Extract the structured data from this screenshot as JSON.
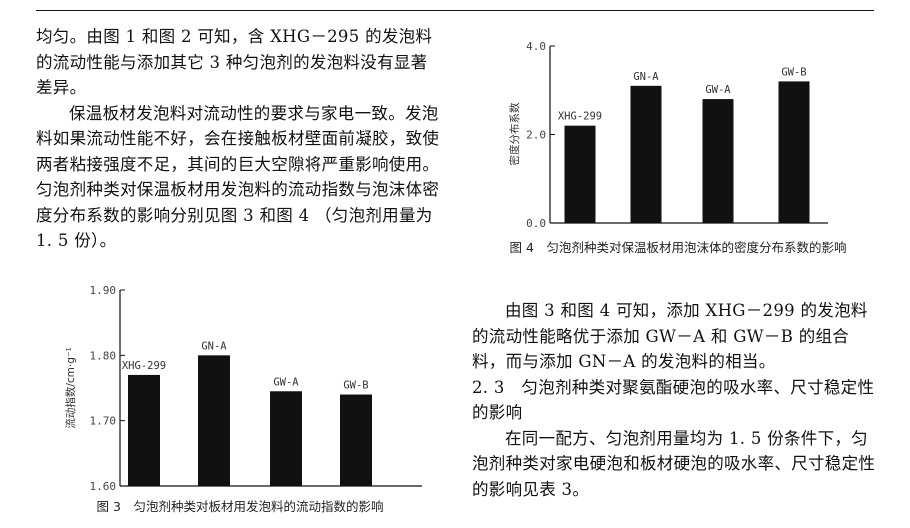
{
  "left_col": {
    "para1": "均匀。由图 1 和图 2 可知，含 XHG－295 的发泡料的流动性能与添加其它 3 种匀泡剂的发泡料没有显著差异。",
    "para2": "保温板材发泡料对流动性的要求与家电一致。发泡料如果流动性能不好，会在接触板材壁面前凝胶，致使两者粘接强度不足，其间的巨大空隙将严重影响使用。匀泡剂种类对保温板材用发泡料的流动指数与泡沫体密度分布系数的影响分别见图 3 和图 4 （匀泡剂用量为 1. 5 份）。"
  },
  "right_col": {
    "para1": "由图 3 和图 4 可知，添加 XHG－299 的发泡料的流动性能略优于添加 GW－A 和 GW－B 的组合料，而与添加 GN－A 的发泡料的相当。",
    "heading": "2. 3　匀泡剂种类对聚氨酯硬泡的吸水率、尺寸稳定性的影响",
    "para2": "在同一配方、匀泡剂用量均为 1. 5 份条件下，匀泡剂种类对家电硬泡和板材硬泡的吸水率、尺寸稳定性的影响见表 3。"
  },
  "captions": {
    "fig3": "图 3　匀泡剂种类对板材用发泡料的流动指数的影响",
    "fig4": "图 4　匀泡剂种类对保温板材用泡沫体的密度分布系数的影响"
  },
  "chart_data": [
    {
      "type": "bar",
      "id": "fig3",
      "categories": [
        "XHG-299",
        "GN-A",
        "GW-A",
        "GW-B"
      ],
      "values": [
        1.77,
        1.8,
        1.745,
        1.74
      ],
      "ylabel": "流动指数/cm·g⁻¹",
      "ylim": [
        1.6,
        1.9
      ],
      "yticks": [
        "1.60",
        "1.70",
        "1.80",
        "1.90"
      ],
      "grid": false,
      "bar_color": "#111111"
    },
    {
      "type": "bar",
      "id": "fig4",
      "categories": [
        "XHG-299",
        "GN-A",
        "GW-A",
        "GW-B"
      ],
      "values": [
        2.2,
        3.1,
        2.8,
        3.2
      ],
      "ylabel": "密度分布系数",
      "ylim": [
        0,
        4.0
      ],
      "yticks": [
        "0.0",
        "2.0",
        "4.0"
      ],
      "grid": false,
      "bar_color": "#111111"
    }
  ]
}
